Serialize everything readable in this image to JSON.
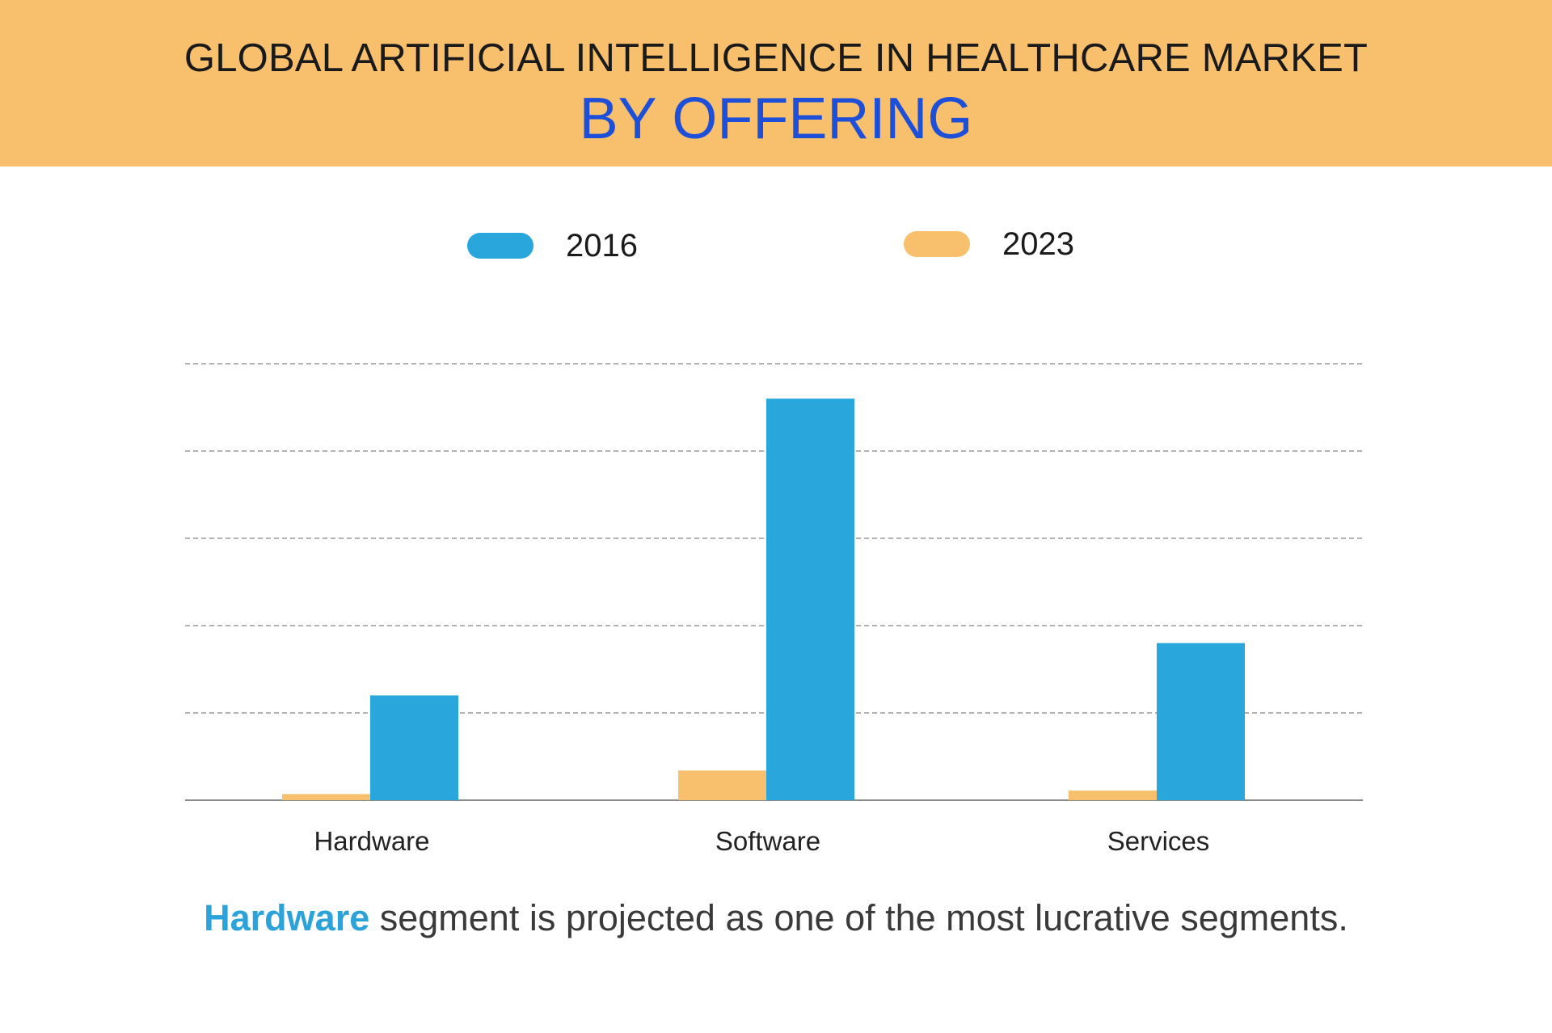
{
  "header": {
    "title": "GLOBAL ARTIFICIAL INTELLIGENCE IN HEALTHCARE MARKET",
    "subtitle": "BY OFFERING"
  },
  "colors": {
    "banner": "#F8C06D",
    "subtitle": "#1E4FD8",
    "series_2016": "#29A6DB",
    "series_2023": "#F8C06D",
    "highlight": "#2BA3DA",
    "grid": "#9a9a9a"
  },
  "chart_data": {
    "type": "bar",
    "title": "GLOBAL ARTIFICIAL INTELLIGENCE IN HEALTHCARE MARKET",
    "subtitle": "BY OFFERING",
    "categories": [
      "Hardware",
      "Software",
      "Services"
    ],
    "series": [
      {
        "name": "2016",
        "color": "#29A6DB",
        "values": [
          1.2,
          4.6,
          1.8
        ]
      },
      {
        "name": "2023",
        "color": "#F8C06D",
        "values": [
          0.07,
          0.34,
          0.11
        ]
      }
    ],
    "ylim": [
      0,
      5
    ],
    "grid": true,
    "legend": "top-center",
    "xlabel": "",
    "ylabel": ""
  },
  "footer": {
    "highlight": "Hardware",
    "text": " segment is projected as one of the most lucrative segments."
  }
}
